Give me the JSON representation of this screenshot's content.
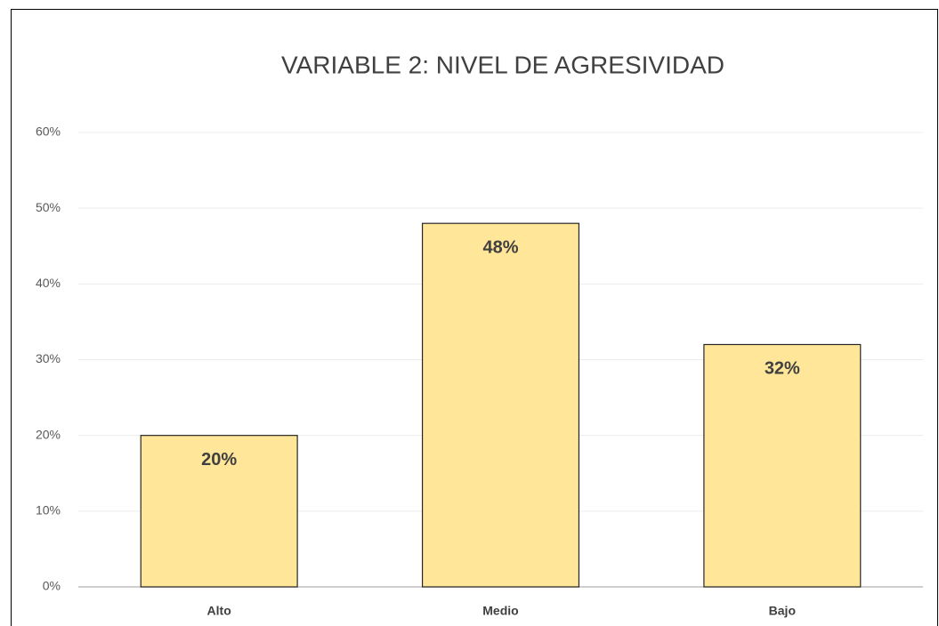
{
  "chart_data": {
    "type": "bar",
    "title": "VARIABLE 2: NIVEL DE AGRESIVIDAD",
    "categories": [
      "Alto",
      "Medio",
      "Bajo"
    ],
    "values": [
      20,
      48,
      32
    ],
    "value_labels": [
      "20%",
      "48%",
      "32%"
    ],
    "color": "#ffe699",
    "ylim": [
      0,
      60
    ],
    "yticks": [
      {
        "value": 0,
        "label": "0%"
      },
      {
        "value": 10,
        "label": "10%"
      },
      {
        "value": 20,
        "label": "20%"
      },
      {
        "value": 30,
        "label": "30%"
      },
      {
        "value": 40,
        "label": "40%"
      },
      {
        "value": 50,
        "label": "50%"
      },
      {
        "value": 60,
        "label": "60%"
      }
    ],
    "grid": true
  }
}
